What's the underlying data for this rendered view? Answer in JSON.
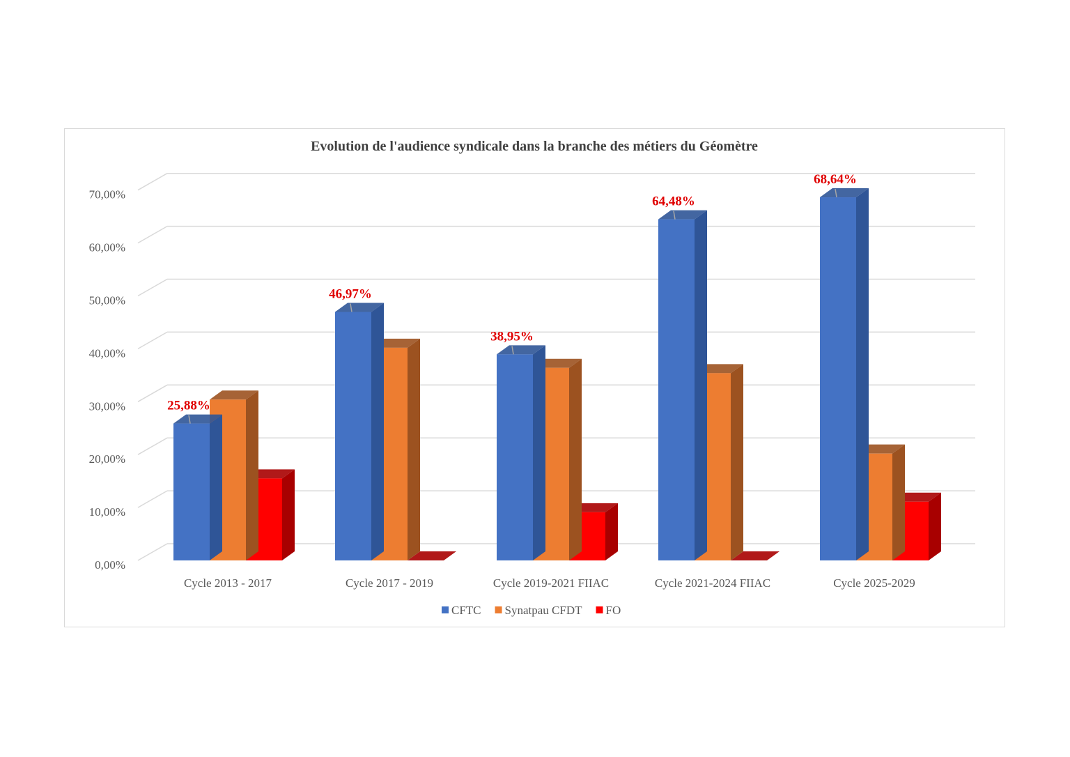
{
  "chart_data": {
    "type": "bar",
    "style": "3d-clustered-column",
    "title": "Evolution de l'audience syndicale dans la branche des métiers du Géomètre",
    "xlabel": "",
    "ylabel": "",
    "ylim": [
      0,
      70
    ],
    "yticks": [
      "0,00%",
      "10,00%",
      "20,00%",
      "30,00%",
      "40,00%",
      "50,00%",
      "60,00%",
      "70,00%"
    ],
    "grid": true,
    "legend_position": "bottom",
    "categories": [
      "Cycle 2013 - 2017",
      "Cycle 2017 - 2019",
      "Cycle 2019-2021 FIIAC",
      "Cycle 2021-2024 FIIAC",
      "Cycle 2025-2029"
    ],
    "series": [
      {
        "name": "CFTC",
        "color": "#4472c4",
        "side": "#2f5597",
        "values": [
          25.88,
          46.97,
          38.95,
          64.48,
          68.64
        ],
        "labels": [
          "25,88%",
          "46,97%",
          "38,95%",
          "64,48%",
          "68,64%"
        ]
      },
      {
        "name": "Synatpau CFDT",
        "color": "#ed7d31",
        "side": "#9c5220",
        "values": [
          30.4,
          40.2,
          36.4,
          35.4,
          20.2
        ]
      },
      {
        "name": "FO",
        "color": "#ff0000",
        "side": "#a80000",
        "values": [
          15.5,
          0,
          9.1,
          0,
          11.1
        ]
      }
    ]
  }
}
